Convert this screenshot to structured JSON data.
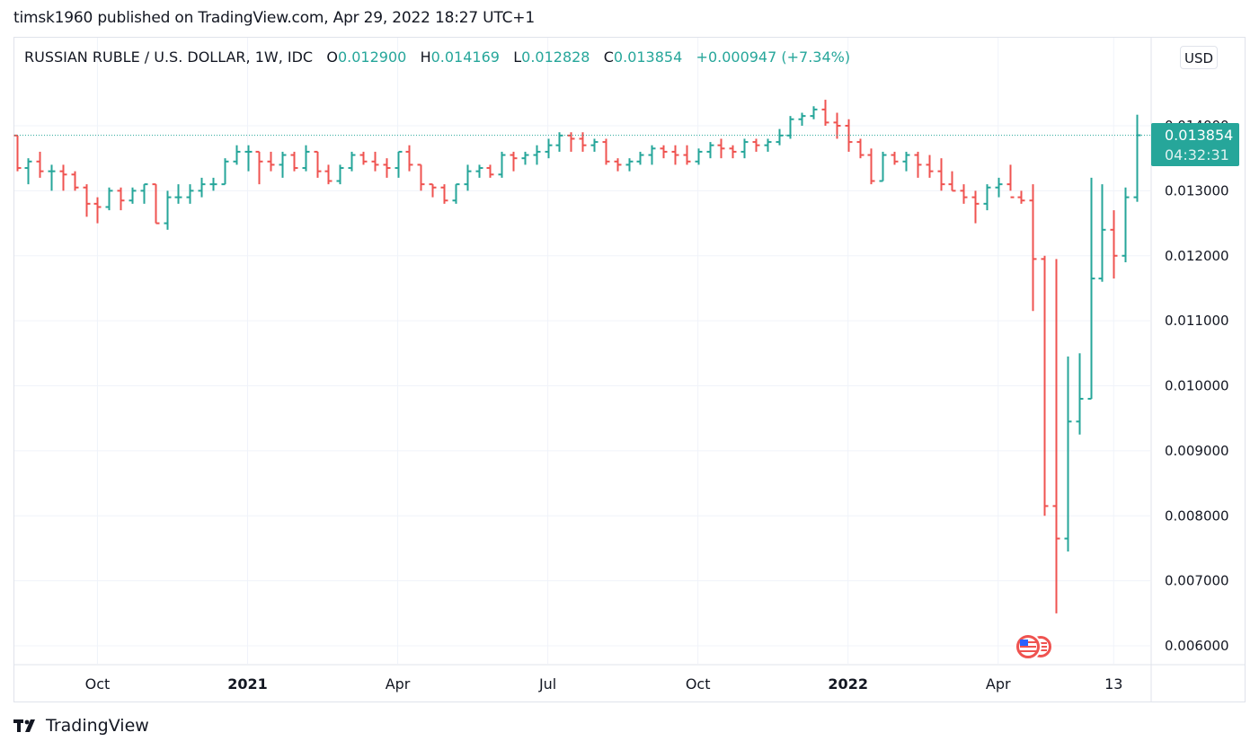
{
  "header": {
    "text": "timsk1960 published on TradingView.com, Apr 29, 2022 18:27 UTC+1"
  },
  "legend": {
    "symbol": "RUSSIAN RUBLE / U.S. DOLLAR, 1W, IDC",
    "o_label": "O",
    "o_value": "0.012900",
    "h_label": "H",
    "h_value": "0.014169",
    "l_label": "L",
    "l_value": "0.012828",
    "c_label": "C",
    "c_value": "0.013854",
    "change": "+0.000947 (+7.34%)"
  },
  "currency_button": "USD",
  "last_price": {
    "value": "0.013854",
    "countdown": "04:32:31"
  },
  "footer": {
    "brand": "TradingView",
    "logo_icon": "tradingview-logo-icon"
  },
  "colors": {
    "up": "#26a69a",
    "down": "#ef5350",
    "grid": "#f0f3fa",
    "axis_text": "#131722"
  },
  "chart_data": {
    "type": "ohlc",
    "title": "RUSSIAN RUBLE / U.S. DOLLAR, 1W, IDC",
    "timeframe": "1W",
    "ylim": [
      0.0058,
      0.0149
    ],
    "yticks": [
      "0.014000",
      "0.013000",
      "0.012000",
      "0.011000",
      "0.010000",
      "0.009000",
      "0.008000",
      "0.007000",
      "0.006000"
    ],
    "ytick_values": [
      0.014,
      0.013,
      0.012,
      0.011,
      0.01,
      0.009,
      0.008,
      0.007,
      0.006
    ],
    "xticks": [
      {
        "label": "Oct",
        "bar": 7,
        "bold": false
      },
      {
        "label": "2021",
        "bar": 20,
        "bold": true
      },
      {
        "label": "Apr",
        "bar": 33,
        "bold": false
      },
      {
        "label": "Jul",
        "bar": 46,
        "bold": false
      },
      {
        "label": "Oct",
        "bar": 59,
        "bold": false
      },
      {
        "label": "2022",
        "bar": 72,
        "bold": true
      },
      {
        "label": "Apr",
        "bar": 85,
        "bold": false
      },
      {
        "label": "13",
        "bar": 95,
        "bold": false
      }
    ],
    "grid": true,
    "last_close": 0.013854,
    "bars": [
      [
        0.01385,
        0.01385,
        0.0133,
        0.01335
      ],
      [
        0.01335,
        0.0135,
        0.0131,
        0.01345
      ],
      [
        0.01345,
        0.0136,
        0.0132,
        0.0133
      ],
      [
        0.0133,
        0.0134,
        0.013,
        0.0133
      ],
      [
        0.0133,
        0.0134,
        0.013,
        0.01325
      ],
      [
        0.01325,
        0.0133,
        0.013,
        0.01305
      ],
      [
        0.01305,
        0.0131,
        0.0126,
        0.0128
      ],
      [
        0.0128,
        0.0129,
        0.0125,
        0.01275
      ],
      [
        0.01275,
        0.01305,
        0.0127,
        0.013
      ],
      [
        0.013,
        0.01305,
        0.0127,
        0.01285
      ],
      [
        0.01285,
        0.01305,
        0.0128,
        0.013
      ],
      [
        0.013,
        0.0131,
        0.0128,
        0.0131
      ],
      [
        0.0131,
        0.0131,
        0.0125,
        0.0125
      ],
      [
        0.0125,
        0.013,
        0.0124,
        0.0129
      ],
      [
        0.0129,
        0.0131,
        0.0128,
        0.0129
      ],
      [
        0.0129,
        0.0131,
        0.0128,
        0.013
      ],
      [
        0.013,
        0.0132,
        0.0129,
        0.0131
      ],
      [
        0.0131,
        0.0132,
        0.013,
        0.0131
      ],
      [
        0.0131,
        0.0135,
        0.0131,
        0.01345
      ],
      [
        0.01345,
        0.0137,
        0.0134,
        0.0136
      ],
      [
        0.0136,
        0.0137,
        0.0133,
        0.0136
      ],
      [
        0.0136,
        0.0136,
        0.0131,
        0.01345
      ],
      [
        0.01345,
        0.0136,
        0.0133,
        0.0134
      ],
      [
        0.0134,
        0.0136,
        0.0132,
        0.01355
      ],
      [
        0.01355,
        0.0136,
        0.0133,
        0.01335
      ],
      [
        0.01335,
        0.0137,
        0.0133,
        0.0136
      ],
      [
        0.0136,
        0.0136,
        0.0132,
        0.0133
      ],
      [
        0.0133,
        0.0134,
        0.0131,
        0.01315
      ],
      [
        0.01315,
        0.0134,
        0.0131,
        0.01335
      ],
      [
        0.01335,
        0.0136,
        0.0133,
        0.01355
      ],
      [
        0.01355,
        0.0136,
        0.0134,
        0.01345
      ],
      [
        0.01345,
        0.0136,
        0.0133,
        0.0134
      ],
      [
        0.0134,
        0.0135,
        0.0132,
        0.01335
      ],
      [
        0.01335,
        0.0136,
        0.0132,
        0.0136
      ],
      [
        0.0136,
        0.0137,
        0.0133,
        0.0134
      ],
      [
        0.0134,
        0.0134,
        0.013,
        0.0131
      ],
      [
        0.0131,
        0.0131,
        0.0129,
        0.01305
      ],
      [
        0.01305,
        0.0131,
        0.0128,
        0.01285
      ],
      [
        0.01285,
        0.0131,
        0.0128,
        0.0131
      ],
      [
        0.0131,
        0.0134,
        0.013,
        0.0133
      ],
      [
        0.0133,
        0.0134,
        0.0132,
        0.01335
      ],
      [
        0.01335,
        0.0134,
        0.0132,
        0.01325
      ],
      [
        0.01325,
        0.0136,
        0.0132,
        0.01355
      ],
      [
        0.01355,
        0.0136,
        0.0133,
        0.0135
      ],
      [
        0.0135,
        0.0136,
        0.0134,
        0.01355
      ],
      [
        0.01355,
        0.0137,
        0.0134,
        0.0136
      ],
      [
        0.0136,
        0.0138,
        0.0135,
        0.0137
      ],
      [
        0.0137,
        0.0139,
        0.0136,
        0.01385
      ],
      [
        0.01385,
        0.0139,
        0.0136,
        0.0138
      ],
      [
        0.0138,
        0.0139,
        0.0136,
        0.0137
      ],
      [
        0.0137,
        0.0138,
        0.0136,
        0.01375
      ],
      [
        0.01375,
        0.0138,
        0.0134,
        0.01345
      ],
      [
        0.01345,
        0.0135,
        0.0133,
        0.0134
      ],
      [
        0.0134,
        0.0135,
        0.0133,
        0.01345
      ],
      [
        0.01345,
        0.0136,
        0.0134,
        0.01355
      ],
      [
        0.01355,
        0.0137,
        0.0134,
        0.01365
      ],
      [
        0.01365,
        0.0137,
        0.0135,
        0.0136
      ],
      [
        0.0136,
        0.0137,
        0.0134,
        0.01355
      ],
      [
        0.01355,
        0.0137,
        0.0134,
        0.01345
      ],
      [
        0.01345,
        0.01365,
        0.0134,
        0.0136
      ],
      [
        0.0136,
        0.01375,
        0.0135,
        0.0137
      ],
      [
        0.0137,
        0.0138,
        0.0135,
        0.01365
      ],
      [
        0.01365,
        0.0137,
        0.0135,
        0.0136
      ],
      [
        0.0136,
        0.0138,
        0.0135,
        0.01375
      ],
      [
        0.01375,
        0.0138,
        0.0136,
        0.0137
      ],
      [
        0.0137,
        0.0138,
        0.0136,
        0.01375
      ],
      [
        0.01375,
        0.01395,
        0.0137,
        0.01385
      ],
      [
        0.01385,
        0.01415,
        0.0138,
        0.0141
      ],
      [
        0.0141,
        0.0142,
        0.014,
        0.01415
      ],
      [
        0.01415,
        0.0143,
        0.0141,
        0.01425
      ],
      [
        0.01425,
        0.0144,
        0.014,
        0.01405
      ],
      [
        0.01405,
        0.0142,
        0.0138,
        0.014
      ],
      [
        0.014,
        0.0141,
        0.0136,
        0.01375
      ],
      [
        0.01375,
        0.0138,
        0.0135,
        0.01355
      ],
      [
        0.01355,
        0.01365,
        0.0131,
        0.01315
      ],
      [
        0.01315,
        0.0136,
        0.01315,
        0.01355
      ],
      [
        0.01355,
        0.0136,
        0.0134,
        0.01345
      ],
      [
        0.01345,
        0.0136,
        0.0133,
        0.01355
      ],
      [
        0.01355,
        0.0136,
        0.0132,
        0.0134
      ],
      [
        0.0134,
        0.01355,
        0.0132,
        0.0133
      ],
      [
        0.0133,
        0.0135,
        0.013,
        0.0131
      ],
      [
        0.0131,
        0.0133,
        0.013,
        0.013
      ],
      [
        0.013,
        0.0131,
        0.0128,
        0.0129
      ],
      [
        0.0129,
        0.013,
        0.0125,
        0.0128
      ],
      [
        0.0128,
        0.0131,
        0.0127,
        0.01305
      ],
      [
        0.01305,
        0.0132,
        0.0129,
        0.0131
      ],
      [
        0.0131,
        0.0134,
        0.013,
        0.0129
      ],
      [
        0.0129,
        0.013,
        0.0128,
        0.01285
      ],
      [
        0.01285,
        0.0131,
        0.01115,
        0.01195
      ],
      [
        0.01195,
        0.012,
        0.008,
        0.00815
      ],
      [
        0.00815,
        0.01195,
        0.0065,
        0.00765
      ],
      [
        0.00765,
        0.01045,
        0.00745,
        0.00945
      ],
      [
        0.00945,
        0.0105,
        0.00925,
        0.0098
      ],
      [
        0.0098,
        0.0132,
        0.0098,
        0.01165
      ],
      [
        0.01165,
        0.0131,
        0.0116,
        0.0124
      ],
      [
        0.0124,
        0.0127,
        0.01165,
        0.012
      ],
      [
        0.012,
        0.01305,
        0.0119,
        0.0129
      ],
      [
        0.0129,
        0.01417,
        0.01283,
        0.013854
      ]
    ]
  }
}
